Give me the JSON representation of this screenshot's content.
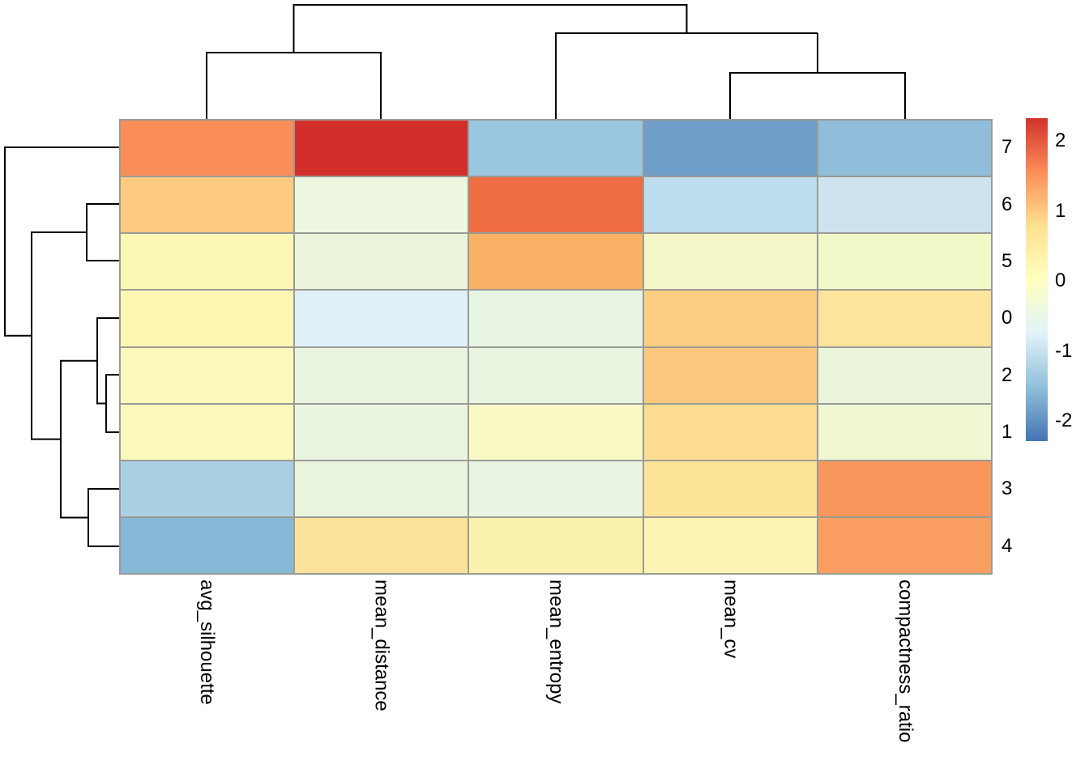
{
  "figure": {
    "background": "#FFFFFF",
    "grid_line_color": "#9B9B95",
    "dendrogram_line_color": "#000000"
  },
  "chart_data": {
    "type": "heatmap",
    "title": "",
    "xlabel": "",
    "ylabel": "",
    "col_labels": [
      "avg_silhouette",
      "mean_distance",
      "mean_entropy",
      "mean_cv",
      "compactness_ratio"
    ],
    "row_labels": [
      "7",
      "6",
      "5",
      "0",
      "2",
      "1",
      "3",
      "4"
    ],
    "values": [
      [
        1.6,
        2.3,
        -1.4,
        -1.9,
        -1.55
      ],
      [
        1.05,
        -0.45,
        1.85,
        -1.1,
        -0.9
      ],
      [
        0.1,
        -0.5,
        1.25,
        -0.2,
        -0.2
      ],
      [
        0.1,
        -0.75,
        -0.55,
        1.0,
        0.65
      ],
      [
        0.05,
        -0.5,
        -0.5,
        1.05,
        -0.4
      ],
      [
        0.05,
        -0.5,
        -0.1,
        0.8,
        -0.3
      ],
      [
        -1.3,
        -0.45,
        -0.5,
        0.7,
        1.5
      ],
      [
        -1.65,
        0.65,
        0.2,
        0.15,
        1.4
      ]
    ],
    "cell_colors": [
      [
        "#FA8E59",
        "#D32F2A",
        "#9AC6E0",
        "#6F9EC8",
        "#8FBDDA"
      ],
      [
        "#FCCA80",
        "#EDF6DE",
        "#EE6D42",
        "#BDDCEC",
        "#CFE3EE"
      ],
      [
        "#FBF8B6",
        "#EAF5DC",
        "#FBB165",
        "#F4F8C9",
        "#F3F8C8"
      ],
      [
        "#FCF7B3",
        "#DFF0F6",
        "#E7F4E3",
        "#FCCE82",
        "#FCE49C"
      ],
      [
        "#FCF9BD",
        "#E9F5DF",
        "#E9F5E1",
        "#FCC87E",
        "#EBF5DC"
      ],
      [
        "#FCF9BD",
        "#E9F5E0",
        "#F8F9C5",
        "#FDDC92",
        "#F0F7D3"
      ],
      [
        "#ABD0E4",
        "#EAF5DE",
        "#E9F5E2",
        "#FDE398",
        "#F9965B"
      ],
      [
        "#88B8D8",
        "#FCE29B",
        "#FAF2AE",
        "#FBF4B4",
        "#FA9F61"
      ]
    ],
    "legend": {
      "ticks": [
        2,
        1,
        0,
        -1,
        -2
      ],
      "range": [
        -2.3,
        2.3
      ],
      "colormap": "RdYlBu reversed",
      "gradient": [
        {
          "pos": 0.0,
          "color": "#D2312B"
        },
        {
          "pos": 0.167,
          "color": "#FC8D59"
        },
        {
          "pos": 0.333,
          "color": "#FEE090"
        },
        {
          "pos": 0.5,
          "color": "#FFFFBF"
        },
        {
          "pos": 0.667,
          "color": "#E0F3F8"
        },
        {
          "pos": 0.833,
          "color": "#91BFDB"
        },
        {
          "pos": 1.0,
          "color": "#4575B4"
        }
      ]
    },
    "col_dendrogram_newick": "((avg_silhouette,mean_distance),(mean_entropy,(mean_cv,compactness_ratio)))",
    "row_dendrogram_newick": "(7,((6,5),((0,(2,1)),(3,4))))",
    "dendrograms": {
      "col_segments": [
        [
          255,
          147,
          255,
          65,
          470,
          65,
          470,
          147
        ],
        [
          362.5,
          65,
          362.5,
          6,
          847.5,
          6,
          847.5,
          41
        ],
        [
          686,
          147,
          686,
          41,
          1009,
          41
        ],
        [
          1009,
          41,
          1009,
          90
        ],
        [
          901,
          147,
          901,
          90,
          1117,
          90,
          1117,
          147
        ]
      ],
      "row_segments": [
        [
          147,
          182,
          6,
          182,
          6,
          414.8,
          39,
          414.8
        ],
        [
          107,
          287,
          39,
          287,
          39,
          542.6,
          75,
          542.6
        ],
        [
          147,
          252,
          107,
          252,
          107,
          322,
          147,
          322
        ],
        [
          120,
          445.8,
          75,
          445.8,
          75,
          639.5,
          109,
          639.5
        ],
        [
          147,
          393,
          120,
          393,
          120,
          498.5,
          131,
          498.5
        ],
        [
          147,
          463,
          131,
          463,
          131,
          534,
          147,
          534
        ],
        [
          147,
          604,
          109,
          604,
          109,
          675,
          147,
          675
        ]
      ]
    }
  }
}
